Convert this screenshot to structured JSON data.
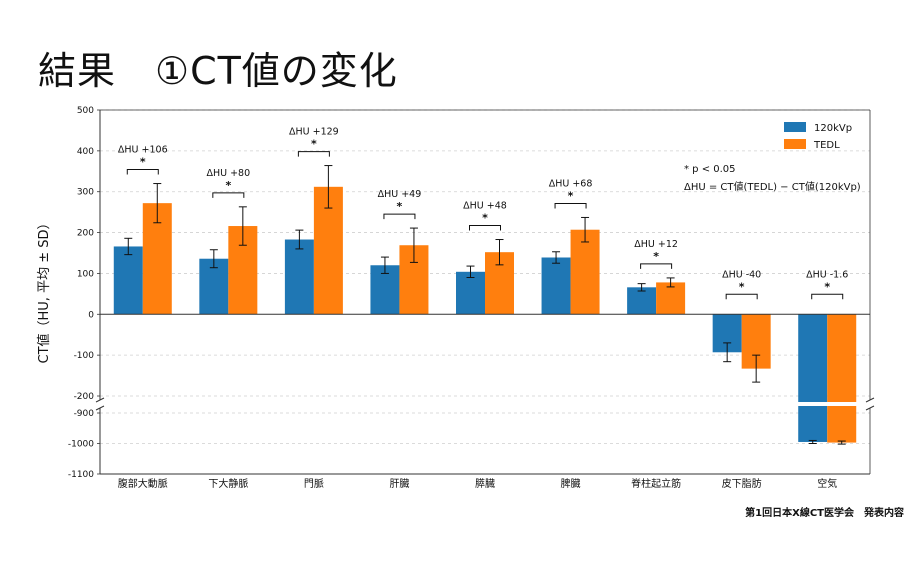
{
  "slide": {
    "title": "結果　①CT値の変化",
    "footer": "第1回日本X線CT医学会　発表内容"
  },
  "chart_data": {
    "type": "bar",
    "ylabel": "CT値（HU, 平均 ± SD）",
    "xlabel": "",
    "categories": [
      "腹部大動脈",
      "下大静脈",
      "門脈",
      "肝臓",
      "膵臓",
      "脾臓",
      "脊柱起立筋",
      "皮下脂肪",
      "空気"
    ],
    "series": [
      {
        "name": "120kVp",
        "color": "#1f77b4",
        "values": [
          166,
          136,
          183,
          120,
          104,
          139,
          66,
          -93,
          -995
        ],
        "sd": [
          20,
          22,
          23,
          20,
          14,
          14,
          9,
          23,
          5
        ]
      },
      {
        "name": "TEDL",
        "color": "#ff7f0e",
        "values": [
          272,
          216,
          312,
          169,
          152,
          207,
          78,
          -133,
          -997
        ],
        "sd": [
          48,
          47,
          52,
          42,
          31,
          30,
          11,
          33,
          5
        ]
      }
    ],
    "delta_labels": [
      "ΔHU +106",
      "ΔHU +80",
      "ΔHU +129",
      "ΔHU +49",
      "ΔHU +48",
      "ΔHU +68",
      "ΔHU +12",
      "ΔHU -40",
      "ΔHU -1.6"
    ],
    "significance_mark": "*",
    "annotations": [
      "* p < 0.05",
      "ΔHU = CT値(TEDL) − CT値(120kVp)"
    ],
    "y_axis": {
      "broken": true,
      "upper_range": [
        -200,
        500
      ],
      "upper_ticks": [
        500,
        400,
        300,
        200,
        100,
        0,
        -100,
        -200
      ],
      "lower_range": [
        -1100,
        -900
      ],
      "lower_ticks": [
        -900,
        -1000,
        -1100
      ]
    },
    "grid": "horizontal dashed",
    "legend_position": "top-right"
  }
}
